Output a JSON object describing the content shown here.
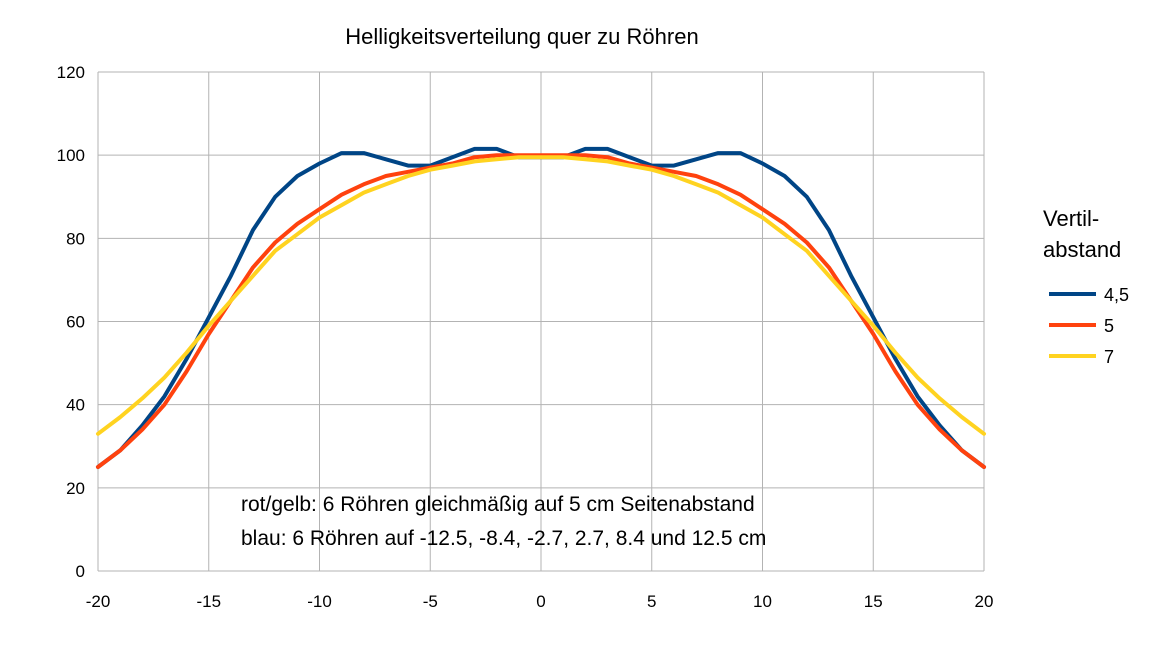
{
  "chart_data": {
    "type": "line",
    "title": "Helligkeitsverteilung quer zu Röhren",
    "xlabel": "",
    "ylabel": "",
    "xlim": [
      -20,
      20
    ],
    "ylim": [
      0,
      120
    ],
    "xticks": [
      -20,
      -15,
      -10,
      -5,
      0,
      5,
      10,
      15,
      20
    ],
    "yticks": [
      0,
      20,
      40,
      60,
      80,
      100,
      120
    ],
    "grid": true,
    "legend": {
      "title_lines": [
        "Vertil-",
        "abstand"
      ],
      "position": "right"
    },
    "annotations": [
      "rot/gelb: 6 Röhren gleichmäßig auf 5 cm Seitenabstand",
      "blau: 6 Röhren auf -12.5, -8.4, -2.7, 2.7, 8.4 und 12.5 cm"
    ],
    "x": [
      -20,
      -19,
      -18,
      -17,
      -16,
      -15,
      -14,
      -13,
      -12,
      -11,
      -10,
      -9,
      -8,
      -7,
      -6,
      -5,
      -4,
      -3,
      -2,
      -1,
      0,
      1,
      2,
      3,
      4,
      5,
      6,
      7,
      8,
      9,
      10,
      11,
      12,
      13,
      14,
      15,
      16,
      17,
      18,
      19,
      20
    ],
    "series": [
      {
        "name": "4,5",
        "color": "#004586",
        "values": [
          25,
          29,
          35,
          42,
          51,
          61,
          71,
          82,
          90,
          95,
          98,
          100.5,
          100.5,
          99,
          97.5,
          97.5,
          99.5,
          101.5,
          101.5,
          99.5,
          99.5,
          99.5,
          101.5,
          101.5,
          99.5,
          97.5,
          97.5,
          99,
          100.5,
          100.5,
          98,
          95,
          90,
          82,
          71,
          61,
          51,
          42,
          35,
          29,
          25
        ]
      },
      {
        "name": "5",
        "color": "#ff420e",
        "values": [
          25,
          29,
          34,
          40,
          48,
          57,
          65,
          73,
          79,
          83.5,
          87,
          90.5,
          93,
          95,
          96,
          97,
          98,
          99.5,
          100,
          100,
          100,
          100,
          100,
          99.5,
          98,
          97,
          96,
          95,
          93,
          90.5,
          87,
          83.5,
          79,
          73,
          65,
          57,
          48,
          40,
          34,
          29,
          25
        ]
      },
      {
        "name": "7",
        "color": "#ffd320",
        "values": [
          33,
          37,
          41.5,
          46.5,
          52.5,
          59,
          65,
          71,
          77,
          81,
          85,
          88,
          91,
          93,
          95,
          96.5,
          97.5,
          98.5,
          99,
          99.5,
          99.5,
          99.5,
          99,
          98.5,
          97.5,
          96.5,
          95,
          93,
          91,
          88,
          85,
          81,
          77,
          71,
          65,
          59,
          52.5,
          46.5,
          41.5,
          37,
          33
        ]
      }
    ]
  }
}
